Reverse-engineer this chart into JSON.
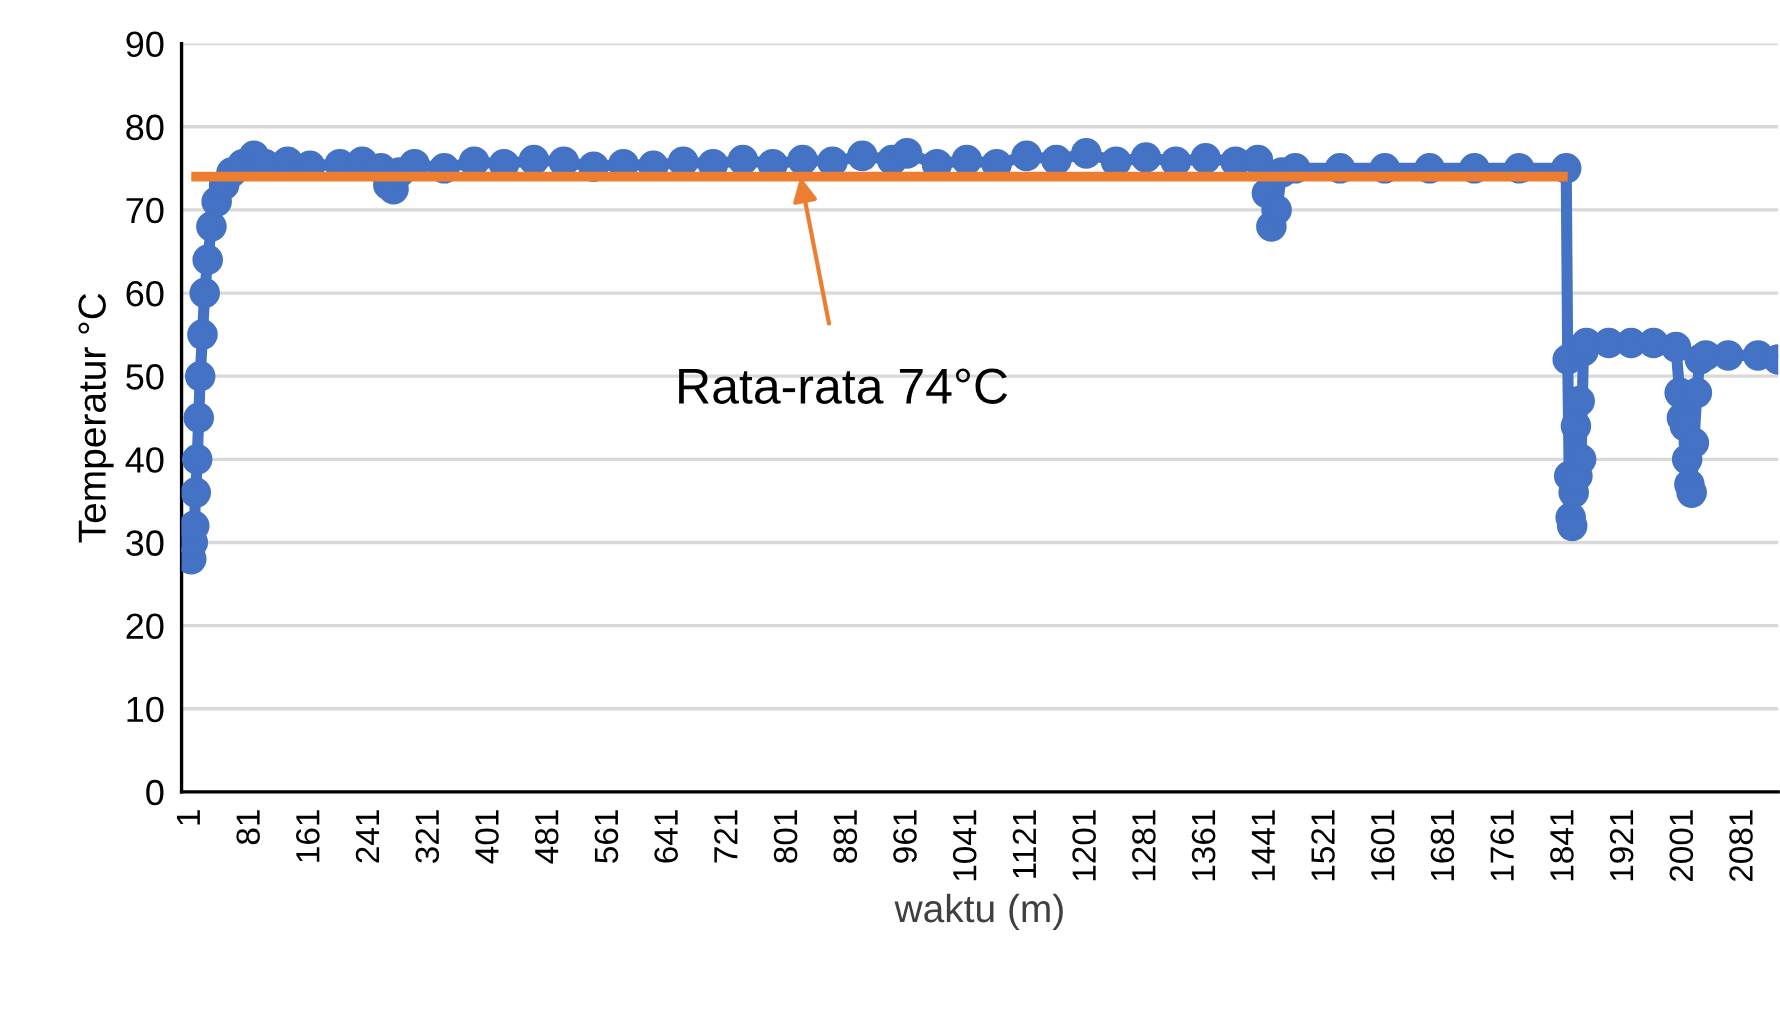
{
  "chart_data": {
    "type": "line",
    "xlabel": "waktu (m)",
    "ylabel": "Temperatur °C",
    "xlim": [
      -12,
      2127
    ],
    "xticks": [
      1,
      81,
      161,
      241,
      321,
      401,
      481,
      561,
      641,
      721,
      801,
      881,
      961,
      1041,
      1121,
      1201,
      1281,
      1361,
      1441,
      1521,
      1601,
      1681,
      1761,
      1841,
      1921,
      2001,
      2081
    ],
    "ylim": [
      0,
      90
    ],
    "yticks": [
      0,
      10,
      20,
      30,
      40,
      50,
      60,
      70,
      80,
      90
    ],
    "grid": "y",
    "series": [
      {
        "color": "#4472c4",
        "marker": "circle",
        "line_style": "solid",
        "x": [
          1,
          3,
          5,
          7,
          9,
          11,
          13,
          16,
          19,
          23,
          28,
          35,
          45,
          55,
          70,
          85,
          100,
          130,
          160,
          200,
          230,
          255,
          265,
          272,
          280,
          300,
          340,
          380,
          420,
          460,
          500,
          540,
          580,
          620,
          660,
          700,
          740,
          780,
          820,
          860,
          900,
          940,
          960,
          1000,
          1040,
          1080,
          1120,
          1160,
          1200,
          1240,
          1280,
          1320,
          1360,
          1400,
          1430,
          1442,
          1448,
          1455,
          1462,
          1480,
          1540,
          1600,
          1660,
          1720,
          1780,
          1843,
          1845,
          1847,
          1849,
          1851,
          1853,
          1856,
          1858,
          1861,
          1863,
          1866,
          1870,
          1900,
          1930,
          1960,
          1990,
          1995,
          1998,
          2002,
          2005,
          2008,
          2011,
          2014,
          2018,
          2022,
          2030,
          2060,
          2100,
          2127
        ],
        "values": [
          28,
          30,
          32,
          36,
          40,
          45,
          50,
          55,
          60,
          64,
          68,
          71,
          73,
          74.5,
          75.5,
          76.5,
          75.5,
          75.8,
          75.3,
          75.5,
          75.8,
          75,
          73,
          72.5,
          74.5,
          75.5,
          75,
          75.8,
          75.5,
          76,
          75.8,
          75.2,
          75.5,
          75.3,
          75.8,
          75.5,
          76,
          75.5,
          76,
          75.8,
          76.5,
          76,
          76.8,
          75.5,
          76,
          75.5,
          76.5,
          76,
          76.8,
          75.8,
          76.3,
          75.8,
          76.2,
          75.8,
          76,
          72,
          68,
          70,
          74.5,
          75,
          75,
          75,
          75,
          75,
          75,
          75,
          52,
          38,
          33,
          32,
          36,
          44,
          38,
          47,
          40,
          53,
          54,
          54,
          54,
          54,
          53.5,
          48,
          45,
          44,
          40,
          37,
          36,
          42,
          48,
          52,
          52.5,
          52.5,
          52.5,
          52
        ]
      },
      {
        "color": "#ed7d31",
        "marker": "none",
        "line_style": "solid",
        "x": [
          1,
          1845
        ],
        "values": [
          74,
          74
        ]
      }
    ],
    "annotations": [
      {
        "text": "Rata-rata 74°C",
        "x": 817,
        "y": 74
      }
    ]
  }
}
